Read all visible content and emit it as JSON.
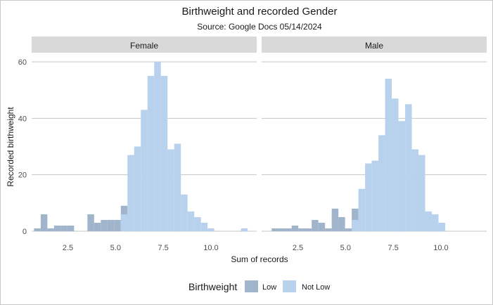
{
  "chart_data": {
    "type": "bar",
    "title": "Birthweight and recorded Gender",
    "subtitle": "Source: Google Docs 05/14/2024",
    "xlabel": "Sum of records",
    "ylabel": "Recorded birthweight",
    "xlim": [
      0.6,
      12.4
    ],
    "ylim": [
      0,
      62
    ],
    "x_ticks": [
      2.5,
      5.0,
      7.5,
      10.0
    ],
    "x_tick_labels": [
      "2.5",
      "5.0",
      "7.5",
      "10.0"
    ],
    "y_ticks": [
      0,
      20,
      40,
      60
    ],
    "y_tick_labels": [
      "0",
      "20",
      "40",
      "60"
    ],
    "bin_width": 0.35,
    "grid": "horizontal",
    "legend": {
      "title": "Birthweight",
      "position": "bottom",
      "entries": [
        {
          "label": "Low",
          "color": "#a0b4cb"
        },
        {
          "label": "Not Low",
          "color": "#b8d1ec"
        }
      ]
    },
    "facets": [
      {
        "label": "Female",
        "series": [
          {
            "name": "Low",
            "color": "#a0b4cb",
            "bins": [
              [
                0.9,
                1
              ],
              [
                1.25,
                6
              ],
              [
                1.6,
                1
              ],
              [
                1.95,
                2
              ],
              [
                2.3,
                2
              ],
              [
                2.65,
                2
              ],
              [
                3.0,
                0
              ],
              [
                3.35,
                0
              ],
              [
                3.7,
                6
              ],
              [
                4.05,
                3
              ],
              [
                4.4,
                4
              ],
              [
                4.75,
                4
              ],
              [
                5.1,
                4
              ],
              [
                5.45,
                9
              ]
            ]
          },
          {
            "name": "Not Low",
            "color": "#b8d1ec",
            "bins": [
              [
                5.45,
                6
              ],
              [
                5.8,
                27
              ],
              [
                6.15,
                30
              ],
              [
                6.5,
                43
              ],
              [
                6.85,
                55
              ],
              [
                7.2,
                60
              ],
              [
                7.55,
                55
              ],
              [
                7.9,
                29
              ],
              [
                8.25,
                31
              ],
              [
                8.6,
                13
              ],
              [
                8.95,
                7
              ],
              [
                9.3,
                5
              ],
              [
                9.65,
                3
              ],
              [
                10.0,
                1
              ],
              [
                11.75,
                1
              ]
            ]
          }
        ]
      },
      {
        "label": "Male",
        "series": [
          {
            "name": "Low",
            "color": "#a0b4cb",
            "bins": [
              [
                1.3,
                1
              ],
              [
                1.65,
                1
              ],
              [
                2.0,
                1
              ],
              [
                2.35,
                2
              ],
              [
                2.7,
                1
              ],
              [
                3.05,
                1
              ],
              [
                3.4,
                4
              ],
              [
                3.75,
                3
              ],
              [
                4.1,
                1
              ],
              [
                4.45,
                8
              ],
              [
                4.8,
                5
              ],
              [
                5.15,
                1
              ],
              [
                5.5,
                8
              ]
            ]
          },
          {
            "name": "Not Low",
            "color": "#b8d1ec",
            "bins": [
              [
                5.5,
                4
              ],
              [
                5.85,
                15
              ],
              [
                6.2,
                24
              ],
              [
                6.55,
                25
              ],
              [
                6.9,
                34
              ],
              [
                7.25,
                54
              ],
              [
                7.6,
                47
              ],
              [
                7.95,
                39
              ],
              [
                8.3,
                45
              ],
              [
                8.65,
                29
              ],
              [
                9.0,
                27
              ],
              [
                9.35,
                7
              ],
              [
                9.7,
                6
              ],
              [
                10.05,
                3
              ]
            ]
          }
        ]
      }
    ]
  }
}
